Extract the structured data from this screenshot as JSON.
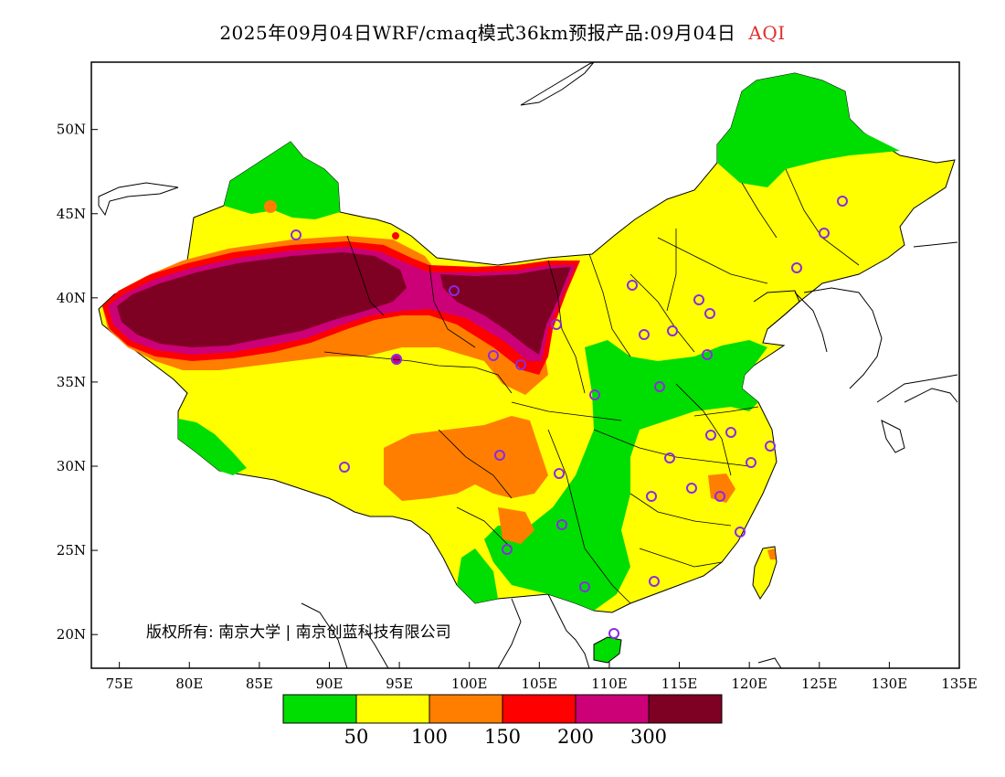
{
  "title": {
    "main": "2025年09月04日WRF/cmaq模式36km预报产品:09月04日",
    "variable": "AQI"
  },
  "map": {
    "lon_range": [
      73,
      135
    ],
    "lat_range": [
      18,
      54
    ],
    "lon_ticks": [
      "75E",
      "80E",
      "85E",
      "90E",
      "95E",
      "100E",
      "105E",
      "110E",
      "115E",
      "120E",
      "125E",
      "130E",
      "135E"
    ],
    "lat_ticks": [
      "20N",
      "25N",
      "30N",
      "35N",
      "40N",
      "45N",
      "50N"
    ],
    "copyright": "版权所有: 南京大学 | 南京创蓝科技有限公司",
    "colors": {
      "good": "#00dd00",
      "moderate": "#ffff00",
      "unhealthy_sensitive": "#ff7e00",
      "unhealthy": "#ff0000",
      "very_unhealthy": "#cc0077",
      "hazardous": "#7e0023",
      "station": "#8a2be2"
    }
  },
  "legend": {
    "labels": [
      "50",
      "100",
      "150",
      "200",
      "300"
    ],
    "colors": [
      "#00dd00",
      "#ffff00",
      "#ff7e00",
      "#ff0000",
      "#cc0077",
      "#7e0023"
    ]
  }
}
